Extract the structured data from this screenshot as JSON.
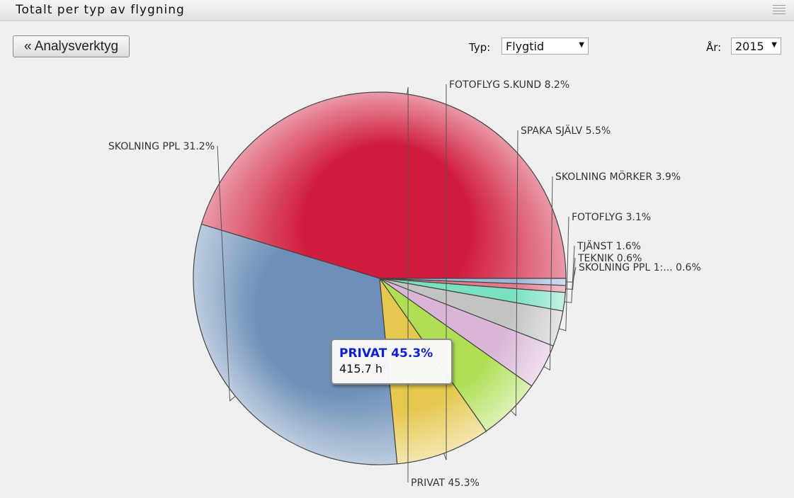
{
  "header": {
    "title": "Totalt per typ av flygning",
    "menu_icon": "menu-lines-icon"
  },
  "toolbar": {
    "back_label": "« Analysverktyg",
    "type_label": "Typ:",
    "type_value": "Flygtid",
    "year_label": "År:",
    "year_value": "2015"
  },
  "tooltip": {
    "name": "PRIVAT 45.3%",
    "value": "415.7 h"
  },
  "chart_data": {
    "type": "pie",
    "start_angle_deg": 0,
    "direction": "counterclockwise",
    "slices": [
      {
        "label": "PRIVAT 45.3%",
        "value": 45.3,
        "color": "#d01c3c"
      },
      {
        "label": "SKOLNING PPL 31.2%",
        "value": 31.2,
        "color": "#6e90b8"
      },
      {
        "label": "FOTOFLYG S.KUND 8.2%",
        "value": 8.2,
        "color": "#e5c84e"
      },
      {
        "label": "SPAKA SJÄLV 5.5%",
        "value": 5.5,
        "color": "#b0df55"
      },
      {
        "label": "SKOLNING MÖRKER 3.9%",
        "value": 3.9,
        "color": "#d9b6d7"
      },
      {
        "label": "FOTOFLYG 3.1%",
        "value": 3.1,
        "color": "#c3c3c3"
      },
      {
        "label": "TJÄNST 1.6%",
        "value": 1.6,
        "color": "#79e0c2"
      },
      {
        "label": "TEKNIK 0.6%",
        "value": 0.6,
        "color": "#e27a8a"
      },
      {
        "label": "SKOLNING PPL 1:... 0.6%",
        "value": 0.6,
        "color": "#9eb6d6"
      }
    ]
  }
}
